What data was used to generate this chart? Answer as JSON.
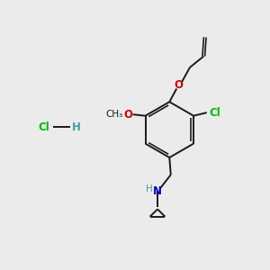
{
  "background_color": "#ebebeb",
  "bond_color": "#1a1a1a",
  "O_color": "#cc0000",
  "N_color": "#0000cc",
  "Cl_color": "#00bb00",
  "H_color": "#4a9a9a",
  "figsize": [
    3.0,
    3.0
  ],
  "dpi": 100,
  "xlim": [
    0,
    10
  ],
  "ylim": [
    0,
    10
  ]
}
